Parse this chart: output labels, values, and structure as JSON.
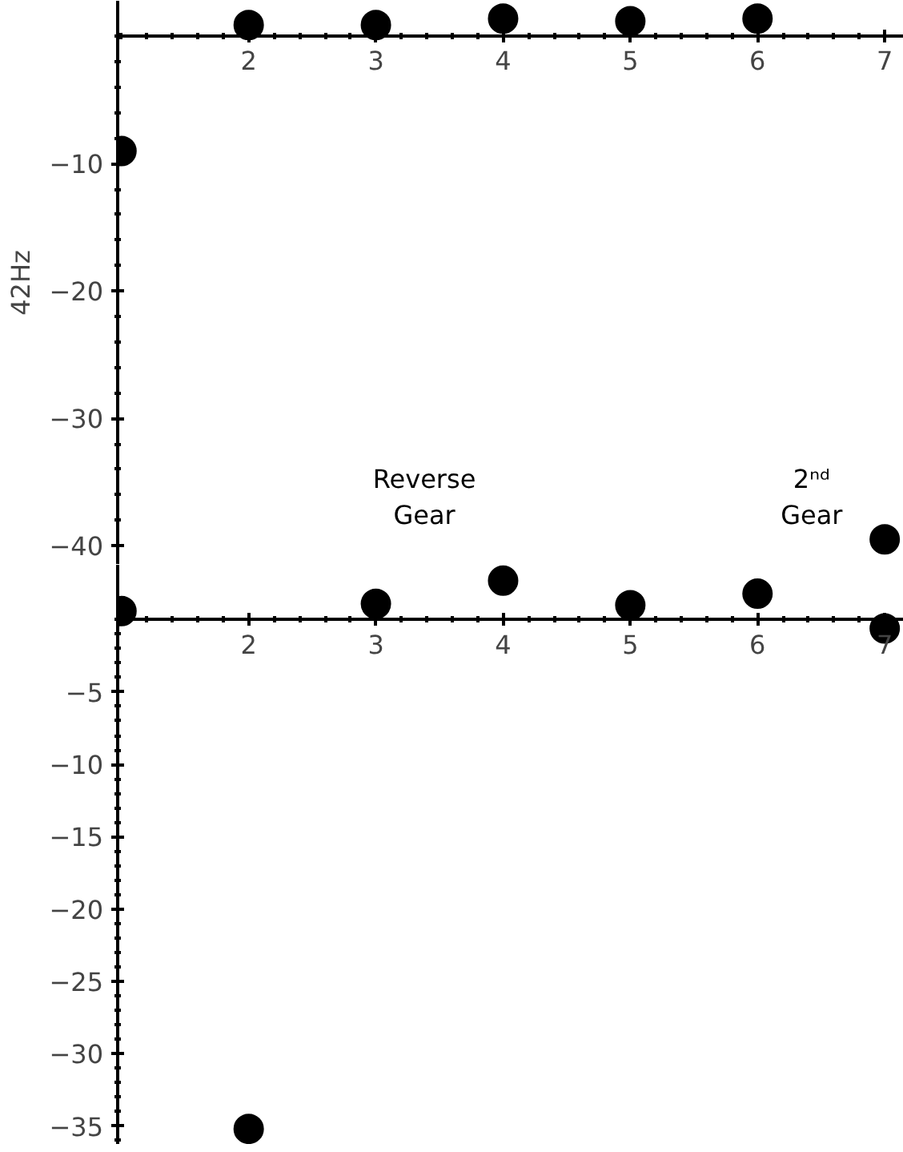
{
  "chart_data": [
    {
      "type": "scatter",
      "ylabel": "42Hz",
      "x": [
        1,
        2,
        3,
        4,
        5,
        6,
        7
      ],
      "xlim": [
        0.97,
        7.15
      ],
      "xticks": [
        2,
        3,
        4,
        5,
        6,
        7
      ],
      "ylim": [
        -41.5,
        2.8
      ],
      "yticks": [
        -10,
        -20,
        -30,
        -40
      ],
      "series": [
        {
          "color": "#000000",
          "values": [
            -9.0,
            0.9,
            0.9,
            1.4,
            1.2,
            1.4,
            -39.5
          ]
        }
      ],
      "annotations": [
        "Reverse\nGear",
        "2ⁿᵈ\nGear"
      ],
      "marker": "circle",
      "grid": false
    },
    {
      "type": "scatter",
      "x": [
        1,
        2,
        3,
        4,
        5,
        6,
        7
      ],
      "xlim": [
        0.97,
        7.15
      ],
      "xticks": [
        2,
        3,
        4,
        5,
        6,
        7
      ],
      "ylim": [
        -36.3,
        3.8
      ],
      "yticks": [
        -5,
        -10,
        -15,
        -20,
        -25,
        -30,
        -35
      ],
      "series": [
        {
          "color": "#000000",
          "values": [
            0.6,
            -35.2,
            1.1,
            2.7,
            1.0,
            1.8,
            -0.6
          ]
        }
      ],
      "marker": "circle",
      "grid": false
    }
  ]
}
